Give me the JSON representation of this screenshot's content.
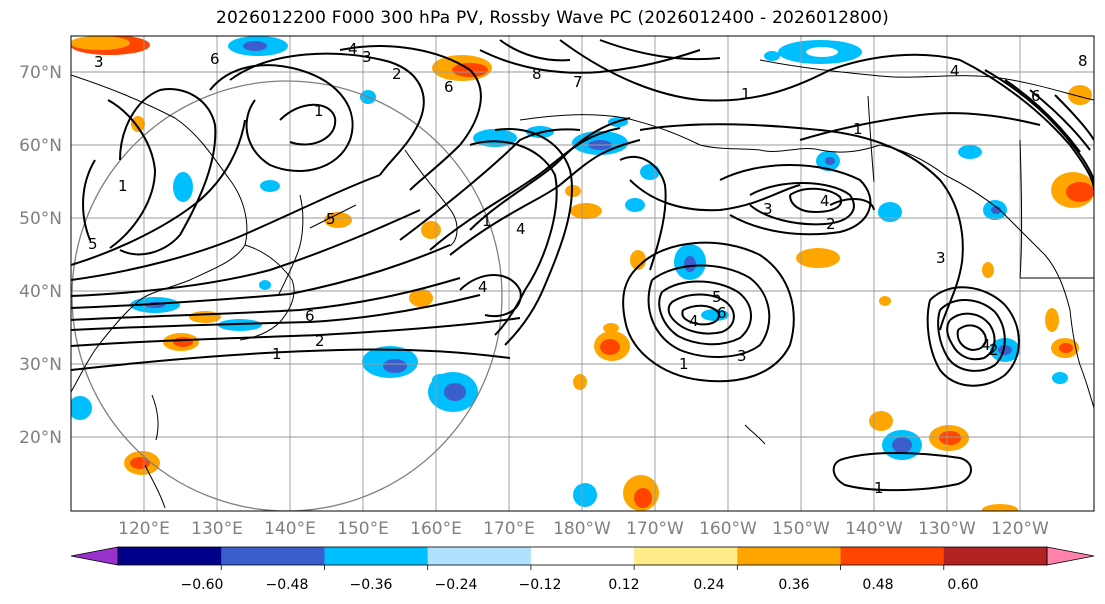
{
  "title": "2026012200 F000 300 hPa PV, Rossby Wave PC (2026012400 - 2026012800)",
  "lat_labels": [
    "70°N",
    "60°N",
    "50°N",
    "40°N",
    "30°N",
    "20°N"
  ],
  "lon_labels": [
    "120°E",
    "130°E",
    "140°E",
    "150°E",
    "160°E",
    "170°E",
    "180°W",
    "170°W",
    "160°W",
    "150°W",
    "140°W",
    "130°W",
    "120°W"
  ],
  "colorbar": {
    "colors": [
      "#9932cc",
      "#00008b",
      "#3a5fcd",
      "#00bfff",
      "#b0e2ff",
      "#ffffff",
      "#ffec8b",
      "#ffa500",
      "#ff4500",
      "#b22222",
      "#ff82ab"
    ],
    "tick_labels": [
      "−0.60",
      "−0.48",
      "−0.36",
      "−0.24",
      "−0.12",
      "0.12",
      "0.24",
      "0.36",
      "0.48",
      "0.60"
    ]
  },
  "contour_labels": [
    "3",
    "6",
    "4",
    "3",
    "2",
    "1",
    "6",
    "8",
    "7",
    "1",
    "1",
    "4",
    "6",
    "8",
    "1",
    "5",
    "5",
    "1",
    "4",
    "4",
    "3",
    "4",
    "2",
    "3",
    "5",
    "6",
    "4",
    "3",
    "1",
    "6",
    "2",
    "1",
    "4",
    "2",
    "1"
  ]
}
